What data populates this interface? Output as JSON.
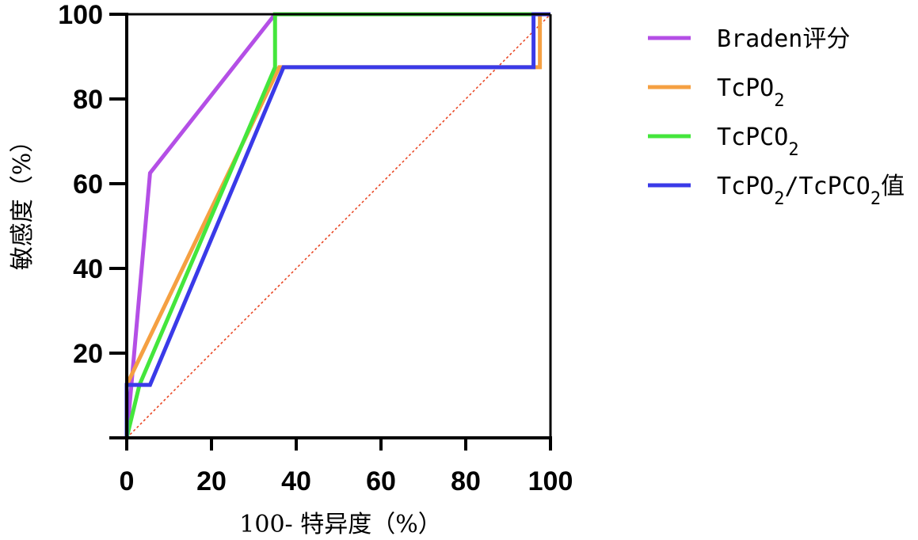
{
  "chart_data": {
    "type": "line",
    "xlabel": "100- 特异度（%）",
    "ylabel": "敏感度（%）",
    "xlim": [
      0,
      100
    ],
    "ylim": [
      0,
      100
    ],
    "x_ticks": [
      "0",
      "20",
      "40",
      "60",
      "80",
      "100"
    ],
    "y_ticks": [
      "20",
      "40",
      "60",
      "80",
      "100"
    ],
    "grid": false,
    "legend_position": "right",
    "reference_line": {
      "x": [
        0,
        100
      ],
      "y": [
        0,
        100
      ],
      "color": "#e8401c",
      "style": "dotted"
    },
    "series": [
      {
        "name": "Braden评分",
        "color": "#b44fe6",
        "x": [
          0,
          5.5,
          35,
          100
        ],
        "y": [
          0,
          62.5,
          100,
          100
        ]
      },
      {
        "name": "TcPO2",
        "color": "#f5a042",
        "x": [
          0,
          0,
          36,
          97.5,
          97.5,
          100
        ],
        "y": [
          0,
          12.5,
          87.5,
          87.5,
          100,
          100
        ]
      },
      {
        "name": "TcPCO2",
        "color": "#44e63c",
        "x": [
          0,
          3,
          35,
          35,
          100
        ],
        "y": [
          0,
          12.5,
          87.5,
          100,
          100
        ]
      },
      {
        "name": "TcPO2/TcPCO2值",
        "color": "#3a3ae8",
        "x": [
          0,
          0,
          5.5,
          37,
          96,
          96,
          100
        ],
        "y": [
          0,
          12.5,
          12.5,
          87.5,
          87.5,
          100,
          100
        ]
      }
    ]
  },
  "legend": [
    {
      "label": "Braden评分",
      "base": "Braden评分",
      "sub": "",
      "tail": ""
    },
    {
      "label": "TcPO2",
      "base": "TcPO",
      "sub": "2",
      "tail": ""
    },
    {
      "label": "TcPCO2",
      "base": "TcPCO",
      "sub": "2",
      "tail": ""
    },
    {
      "label": "TcPO2/TcPCO2值",
      "base": "TcPO",
      "sub": "2",
      "mid": "/TcPCO",
      "sub2": "2",
      "tail": "值"
    }
  ]
}
